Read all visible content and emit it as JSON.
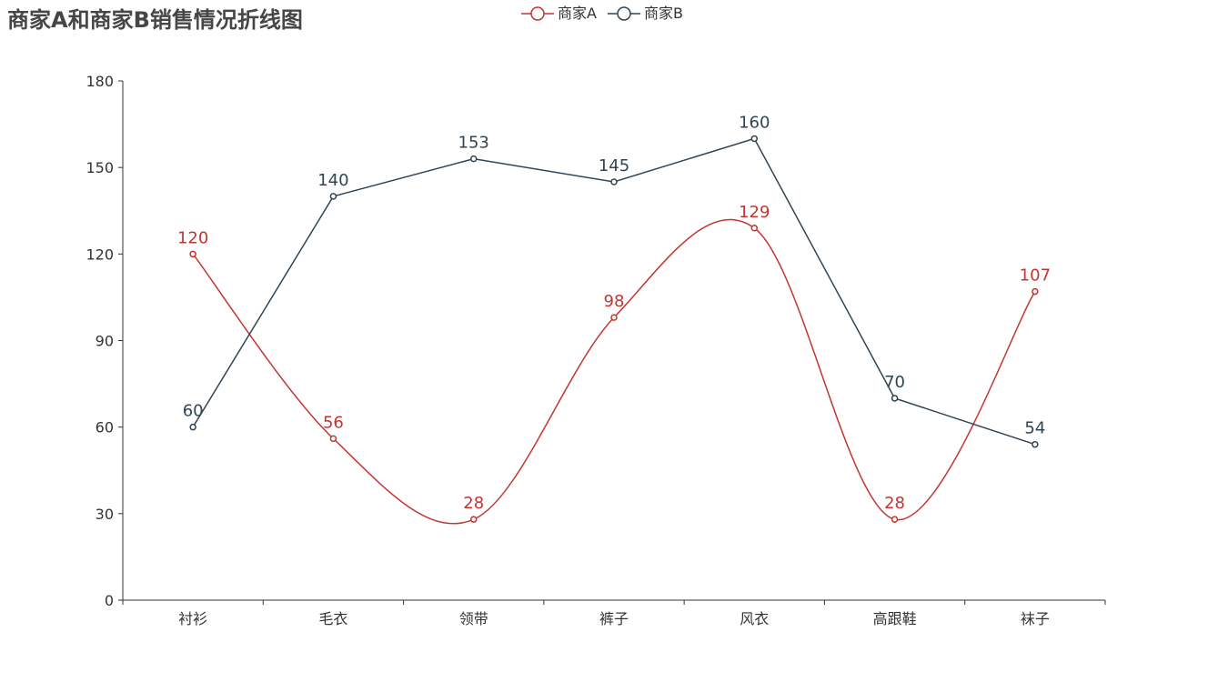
{
  "title": "商家A和商家B销售情况折线图",
  "legend": [
    {
      "label": "商家A",
      "color": "#c23531"
    },
    {
      "label": "商家B",
      "color": "#2f4554"
    }
  ],
  "chart_data": {
    "type": "line",
    "title": "商家A和商家B销售情况折线图",
    "categories": [
      "衬衫",
      "毛衣",
      "领带",
      "裤子",
      "风衣",
      "高跟鞋",
      "袜子"
    ],
    "series": [
      {
        "name": "商家A",
        "values": [
          120,
          56,
          28,
          98,
          129,
          28,
          107
        ],
        "color": "#c23531",
        "smooth": true
      },
      {
        "name": "商家B",
        "values": [
          60,
          140,
          153,
          145,
          160,
          70,
          54
        ],
        "color": "#2f4554",
        "smooth": false
      }
    ],
    "ylim": [
      0,
      180
    ],
    "yticks": [
      0,
      30,
      60,
      90,
      120,
      150,
      180
    ],
    "grid": false,
    "legend_position": "top-center",
    "data_labels": true
  }
}
